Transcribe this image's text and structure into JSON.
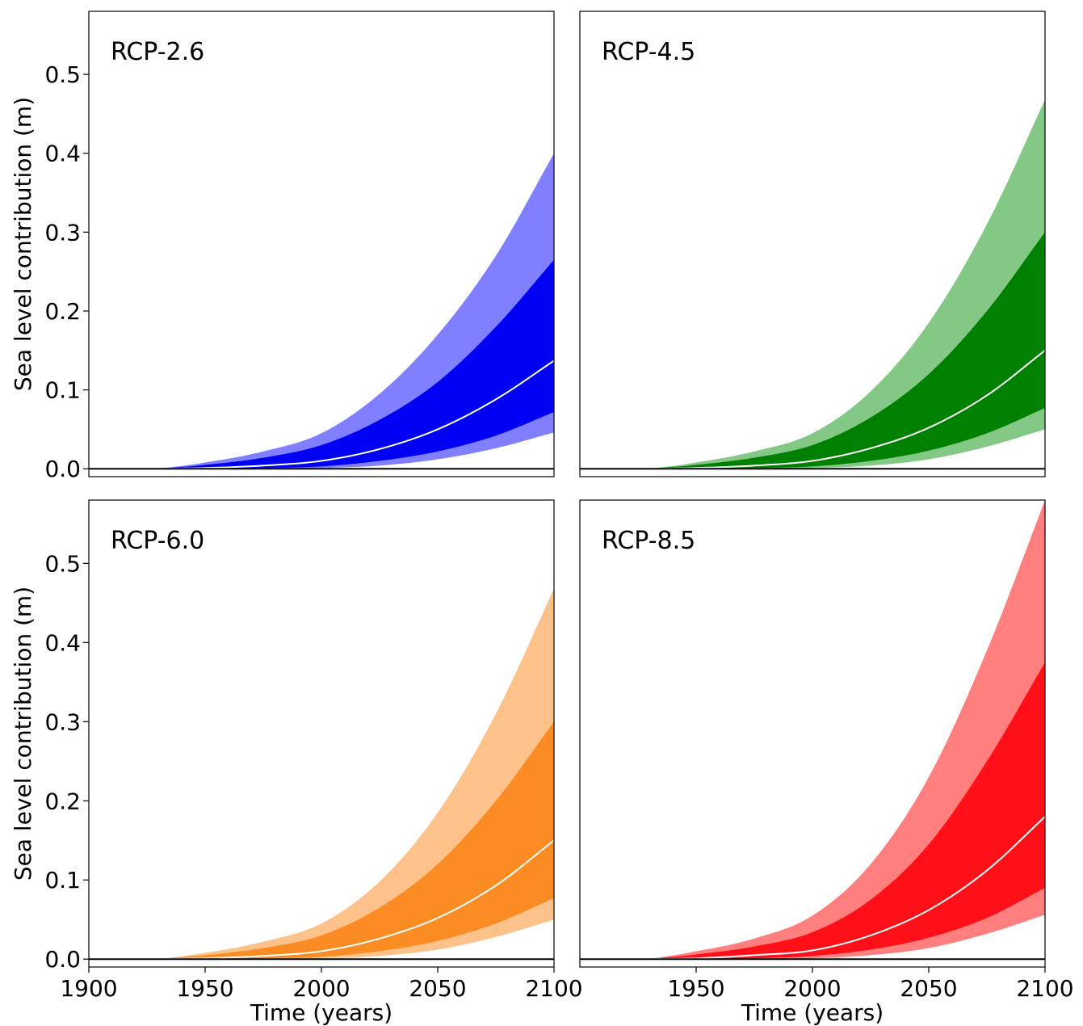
{
  "chart_data": [
    {
      "type": "area",
      "title": "RCP-2.6",
      "xlabel": "",
      "ylabel": "Sea level contribution (m)",
      "xlim": [
        1900,
        2100
      ],
      "ylim": [
        -0.01,
        0.58
      ],
      "xticks": [],
      "yticks": [
        0.0,
        0.1,
        0.2,
        0.3,
        0.4,
        0.5
      ],
      "ytick_labels": [
        "0.0",
        "0.1",
        "0.2",
        "0.3",
        "0.4",
        "0.5"
      ],
      "colors": {
        "outer": "#7f7fff",
        "inner": "#0000f5",
        "median": "#ffffff"
      },
      "x": [
        1930,
        1950,
        1975,
        2000,
        2025,
        2050,
        2075,
        2100
      ],
      "outer_upper": [
        0.0,
        0.008,
        0.022,
        0.045,
        0.095,
        0.17,
        0.27,
        0.4
      ],
      "inner_upper": [
        0.0,
        0.005,
        0.014,
        0.03,
        0.062,
        0.11,
        0.18,
        0.265
      ],
      "median": [
        0.0,
        0.001,
        0.004,
        0.01,
        0.025,
        0.05,
        0.088,
        0.137
      ],
      "inner_lower": [
        0.0,
        0.0,
        0.001,
        0.003,
        0.01,
        0.022,
        0.042,
        0.072
      ],
      "outer_lower": [
        0.0,
        0.0,
        0.0,
        0.001,
        0.004,
        0.012,
        0.026,
        0.046
      ]
    },
    {
      "type": "area",
      "title": "RCP-4.5",
      "xlabel": "",
      "ylabel": "",
      "xlim": [
        1900,
        2100
      ],
      "ylim": [
        -0.01,
        0.58
      ],
      "xticks": [],
      "yticks": [],
      "ytick_labels": [],
      "colors": {
        "outer": "#83c884",
        "inner": "#008000",
        "median": "#ffffff"
      },
      "x": [
        1930,
        1950,
        1975,
        2000,
        2025,
        2050,
        2075,
        2100
      ],
      "outer_upper": [
        0.0,
        0.008,
        0.022,
        0.045,
        0.098,
        0.185,
        0.31,
        0.468
      ],
      "inner_upper": [
        0.0,
        0.005,
        0.014,
        0.03,
        0.065,
        0.12,
        0.2,
        0.3
      ],
      "median": [
        0.0,
        0.001,
        0.004,
        0.01,
        0.026,
        0.052,
        0.093,
        0.15
      ],
      "inner_lower": [
        0.0,
        0.0,
        0.001,
        0.003,
        0.01,
        0.023,
        0.045,
        0.077
      ],
      "outer_lower": [
        0.0,
        0.0,
        0.0,
        0.001,
        0.004,
        0.012,
        0.028,
        0.05
      ]
    },
    {
      "type": "area",
      "title": "RCP-6.0",
      "xlabel": "Time (years)",
      "ylabel": "Sea level contribution (m)",
      "xlim": [
        1900,
        2100
      ],
      "ylim": [
        -0.01,
        0.58
      ],
      "xticks": [
        1900,
        1950,
        2000,
        2050,
        2100
      ],
      "xtick_labels": [
        "1900",
        "1950",
        "2000",
        "2050",
        "2100"
      ],
      "yticks": [
        0.0,
        0.1,
        0.2,
        0.3,
        0.4,
        0.5
      ],
      "ytick_labels": [
        "0.0",
        "0.1",
        "0.2",
        "0.3",
        "0.4",
        "0.5"
      ],
      "colors": {
        "outer": "#fdc28a",
        "inner": "#fb8c24",
        "median": "#ffffff"
      },
      "x": [
        1930,
        1950,
        1975,
        2000,
        2025,
        2050,
        2075,
        2100
      ],
      "outer_upper": [
        0.0,
        0.008,
        0.022,
        0.045,
        0.098,
        0.185,
        0.31,
        0.468
      ],
      "inner_upper": [
        0.0,
        0.005,
        0.014,
        0.03,
        0.065,
        0.12,
        0.2,
        0.3
      ],
      "median": [
        0.0,
        0.001,
        0.004,
        0.01,
        0.026,
        0.052,
        0.093,
        0.15
      ],
      "inner_lower": [
        0.0,
        0.0,
        0.001,
        0.003,
        0.01,
        0.023,
        0.045,
        0.077
      ],
      "outer_lower": [
        0.0,
        0.0,
        0.0,
        0.001,
        0.004,
        0.012,
        0.028,
        0.05
      ]
    },
    {
      "type": "area",
      "title": "RCP-8.5",
      "xlabel": "Time (years)",
      "ylabel": "",
      "xlim": [
        1900,
        2100
      ],
      "ylim": [
        -0.01,
        0.58
      ],
      "xticks": [
        1950,
        2000,
        2050,
        2100
      ],
      "xtick_labels": [
        "1950",
        "2000",
        "2050",
        "2100"
      ],
      "yticks": [],
      "ytick_labels": [],
      "colors": {
        "outer": "#ff7f7f",
        "inner": "#ff1018",
        "median": "#ffffff"
      },
      "x": [
        1930,
        1950,
        1975,
        2000,
        2025,
        2050,
        2075,
        2100
      ],
      "outer_upper": [
        0.0,
        0.01,
        0.026,
        0.055,
        0.12,
        0.23,
        0.39,
        0.58
      ],
      "inner_upper": [
        0.0,
        0.006,
        0.016,
        0.034,
        0.075,
        0.145,
        0.25,
        0.375
      ],
      "median": [
        0.0,
        0.001,
        0.005,
        0.011,
        0.03,
        0.062,
        0.112,
        0.18
      ],
      "inner_lower": [
        0.0,
        0.0,
        0.001,
        0.004,
        0.012,
        0.027,
        0.052,
        0.09
      ],
      "outer_lower": [
        0.0,
        0.0,
        0.0,
        0.001,
        0.005,
        0.014,
        0.032,
        0.056
      ]
    }
  ]
}
